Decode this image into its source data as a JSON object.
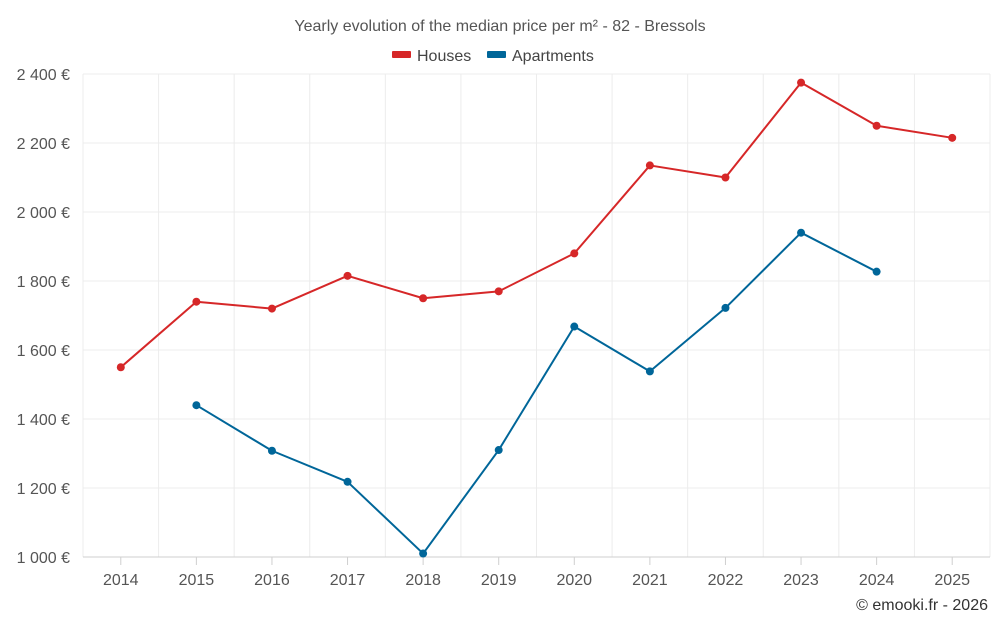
{
  "chart_data": {
    "type": "line",
    "title": "Yearly evolution of the median price per m² - 82 - Bressols",
    "xlabel": "",
    "ylabel": "",
    "categories": [
      "2014",
      "2015",
      "2016",
      "2017",
      "2018",
      "2019",
      "2020",
      "2021",
      "2022",
      "2023",
      "2024",
      "2025"
    ],
    "ylim": [
      1000,
      2400
    ],
    "yticks": [
      1000,
      1200,
      1400,
      1600,
      1800,
      2000,
      2200,
      2400
    ],
    "ytick_labels": [
      "1 000 €",
      "1 200 €",
      "1 400 €",
      "1 600 €",
      "1 800 €",
      "2 000 €",
      "2 200 €",
      "2 400 €"
    ],
    "legend_position": "top-center",
    "grid": true,
    "series": [
      {
        "name": "Houses",
        "color": "#d62728",
        "values": [
          1550,
          1740,
          1720,
          1815,
          1750,
          1770,
          1880,
          2135,
          2100,
          2375,
          2250,
          2215
        ]
      },
      {
        "name": "Apartments",
        "color": "#006699",
        "values": [
          null,
          1440,
          1308,
          1218,
          1010,
          1310,
          1668,
          1538,
          1722,
          1940,
          1827,
          null
        ]
      }
    ]
  },
  "credit": "© emooki.fr - 2026"
}
